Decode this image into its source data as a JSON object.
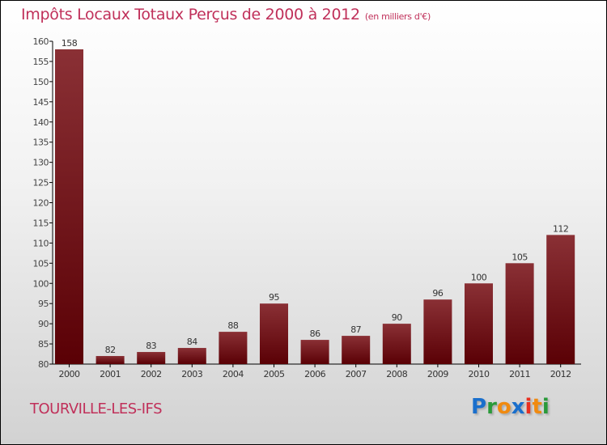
{
  "title": "Impôts Locaux Totaux Perçus de 2000 à 2012",
  "unit": "(en milliers d'€)",
  "town": "TOURVILLE-LES-IFS",
  "logo": "Proxiti",
  "colors": {
    "bar": "#7a1f24",
    "title": "#c0305a"
  },
  "chart_data": {
    "type": "bar",
    "title": "Impôts Locaux Totaux Perçus de 2000 à 2012 (en milliers d'€)",
    "categories": [
      "2000",
      "2001",
      "2002",
      "2003",
      "2004",
      "2005",
      "2006",
      "2007",
      "2008",
      "2009",
      "2010",
      "2011",
      "2012"
    ],
    "values": [
      158,
      82,
      83,
      84,
      88,
      95,
      86,
      87,
      90,
      96,
      100,
      105,
      112
    ],
    "ylim": [
      80,
      160
    ],
    "yticks": [
      80,
      85,
      90,
      95,
      100,
      105,
      110,
      115,
      120,
      125,
      130,
      135,
      140,
      145,
      150,
      155,
      160
    ],
    "grid": false
  }
}
